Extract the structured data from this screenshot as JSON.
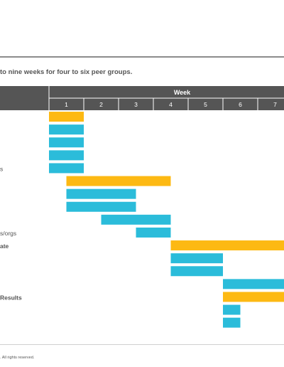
{
  "subtitle": "to nine weeks for four to six peer groups.",
  "footer_note": ". All rights reserved.",
  "chart_data": {
    "type": "gantt",
    "header": "Week",
    "weeks": [
      "1",
      "2",
      "3",
      "4",
      "5",
      "6",
      "7"
    ],
    "colors": {
      "phase": "#FDB913",
      "task": "#2BBCDA",
      "header": "#555555"
    },
    "rows": [
      {
        "label": "",
        "bold": false,
        "kind": "phase",
        "start": 1,
        "end": 2
      },
      {
        "label": "",
        "bold": false,
        "kind": "task",
        "start": 1,
        "end": 2
      },
      {
        "label": "",
        "bold": false,
        "kind": "task",
        "start": 1,
        "end": 2
      },
      {
        "label": "",
        "bold": false,
        "kind": "task",
        "start": 1,
        "end": 2
      },
      {
        "label": "s",
        "bold": false,
        "kind": "task",
        "start": 1,
        "end": 2
      },
      {
        "label": "",
        "bold": false,
        "kind": "phase",
        "start": 1.5,
        "end": 4.5
      },
      {
        "label": "",
        "bold": false,
        "kind": "task",
        "start": 1.5,
        "end": 3.5
      },
      {
        "label": "",
        "bold": false,
        "kind": "task",
        "start": 1.5,
        "end": 3.5
      },
      {
        "label": "",
        "bold": false,
        "kind": "task",
        "start": 2.5,
        "end": 4.5
      },
      {
        "label": "s/orgs",
        "bold": false,
        "kind": "task",
        "start": 3.5,
        "end": 4.5
      },
      {
        "label": "ate",
        "bold": true,
        "kind": "phase",
        "start": 4.5,
        "end": 8
      },
      {
        "label": "",
        "bold": false,
        "kind": "task",
        "start": 4.5,
        "end": 6
      },
      {
        "label": "",
        "bold": false,
        "kind": "task",
        "start": 4.5,
        "end": 6
      },
      {
        "label": "",
        "bold": false,
        "kind": "task",
        "start": 6,
        "end": 8
      },
      {
        "label": "Results",
        "bold": true,
        "kind": "phase",
        "start": 6,
        "end": 8
      },
      {
        "label": "",
        "bold": false,
        "kind": "task",
        "start": 6,
        "end": 6.5
      },
      {
        "label": "",
        "bold": false,
        "kind": "task",
        "start": 6,
        "end": 6.5
      }
    ]
  }
}
